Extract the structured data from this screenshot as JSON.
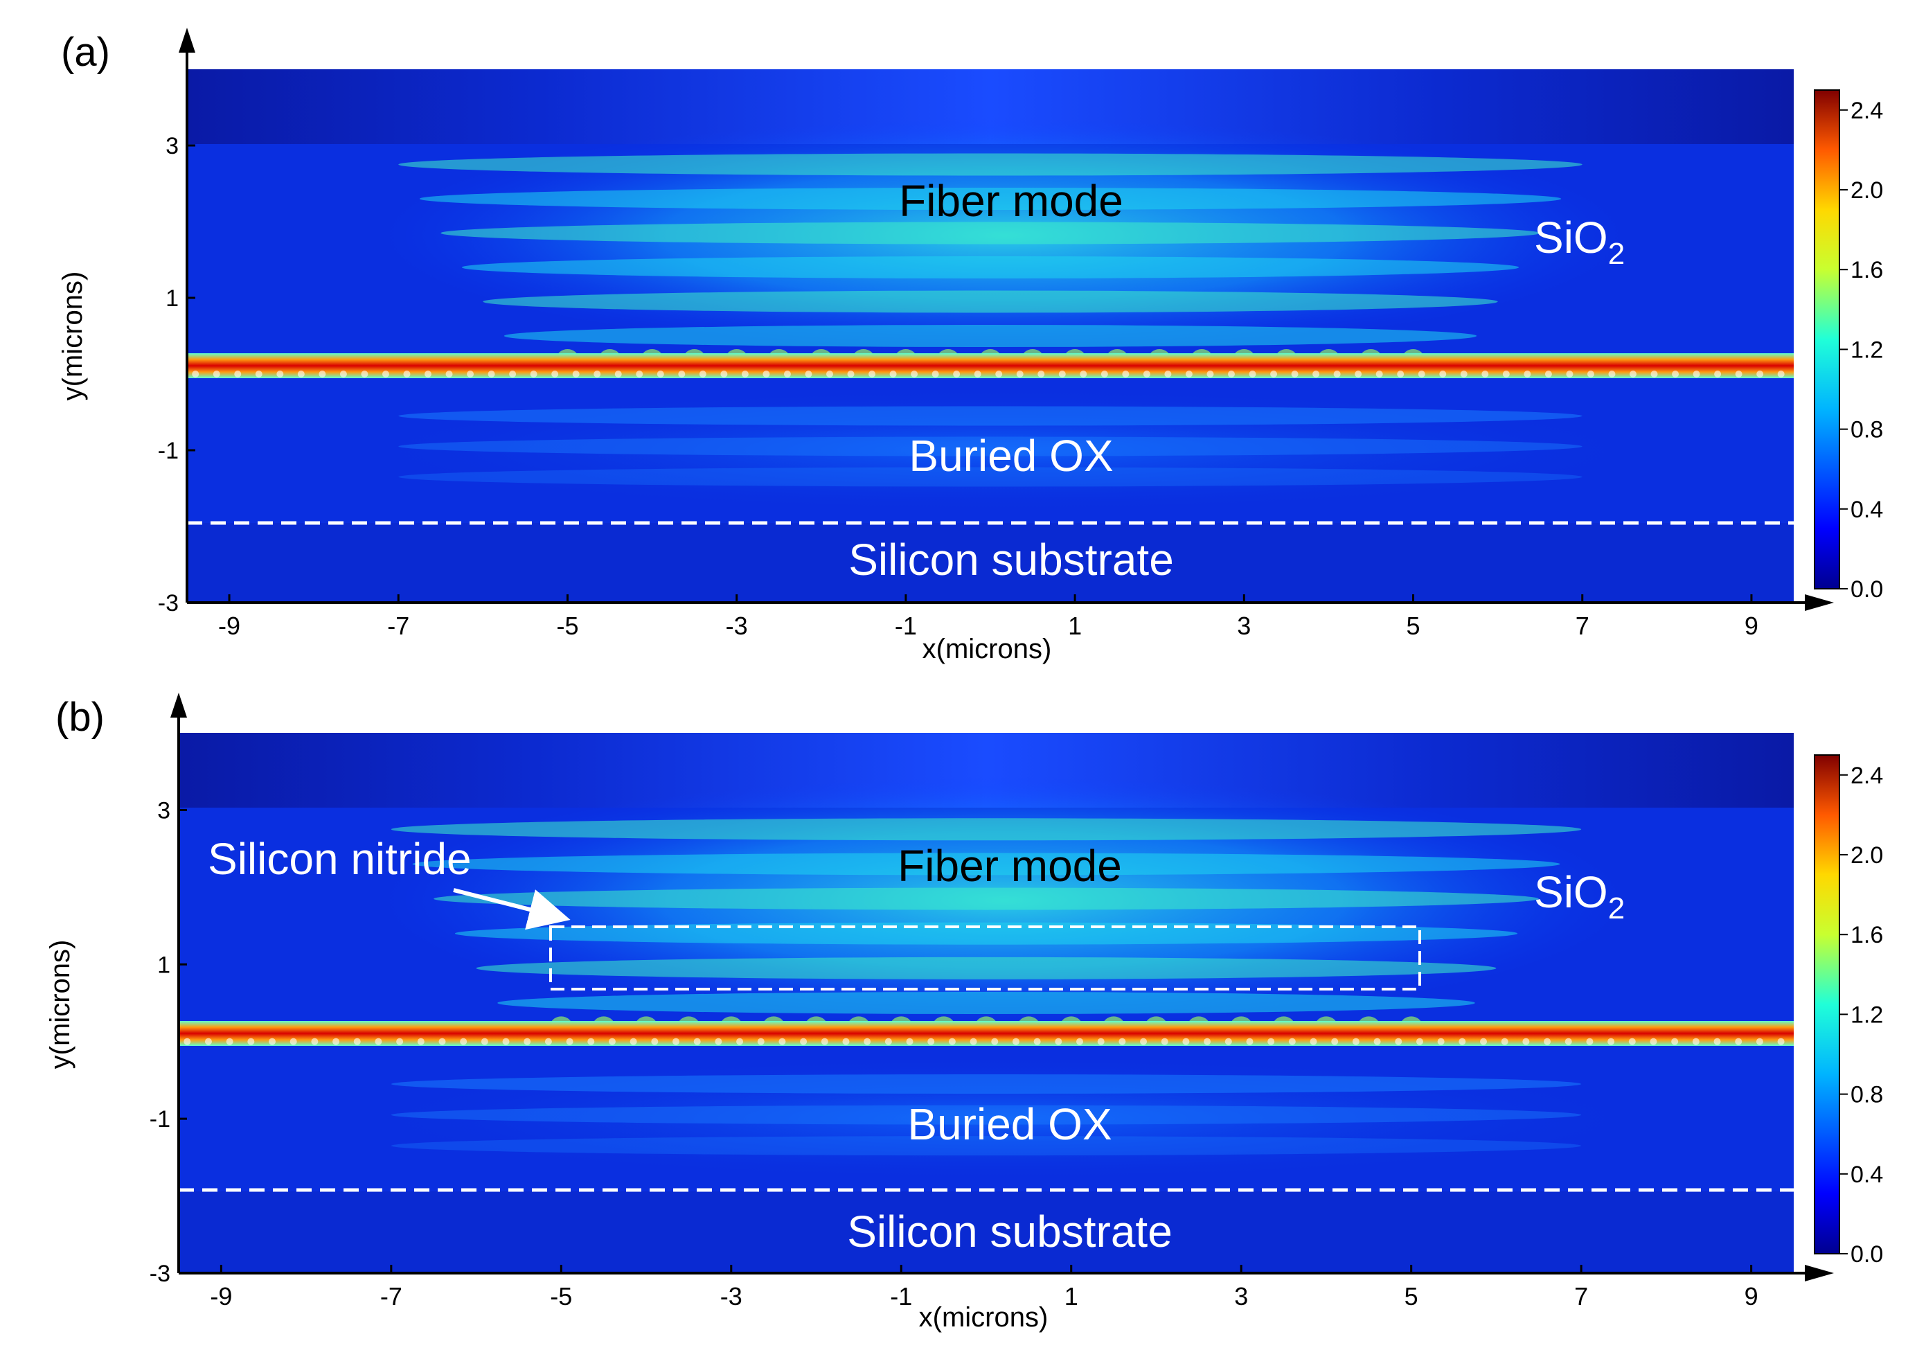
{
  "chart_data": [
    {
      "type": "heatmap",
      "panel_label": "(a)",
      "xlabel": "x(microns)",
      "ylabel": "y(microns)",
      "xlim": [
        -9.5,
        9.5
      ],
      "ylim": [
        -3,
        4
      ],
      "x_ticks": [
        -9,
        -7,
        -5,
        -3,
        -1,
        1,
        3,
        5,
        7,
        9
      ],
      "y_ticks": [
        3,
        1,
        -1,
        -3
      ],
      "colorbar": {
        "min": 0.0,
        "max": 2.5,
        "ticks": [
          "2.4",
          "2.0",
          "1.6",
          "1.2",
          "0.8",
          "0.4",
          "0.0"
        ]
      },
      "annotations": {
        "fiber_mode": "Fiber mode",
        "sio2_main": "SiO",
        "sio2_sub": "2",
        "buried_ox": "Buried OX",
        "silicon_substrate": "Silicon substrate"
      },
      "substrate_boundary_y": -1.9,
      "waveguide_y": 0.0,
      "grating_x_range": [
        -5,
        5
      ],
      "fiber_input_top_y": 3.0
    },
    {
      "type": "heatmap",
      "panel_label": "(b)",
      "xlabel": "x(microns)",
      "ylabel": "y(microns)",
      "xlim": [
        -9.5,
        9.5
      ],
      "ylim": [
        -3,
        4
      ],
      "x_ticks": [
        -9,
        -7,
        -5,
        -3,
        -1,
        1,
        3,
        5,
        7,
        9
      ],
      "y_ticks": [
        3,
        1,
        -1,
        -3
      ],
      "colorbar": {
        "min": 0.0,
        "max": 2.5,
        "ticks": [
          "2.4",
          "2.0",
          "1.6",
          "1.2",
          "0.8",
          "0.4",
          "0.0"
        ]
      },
      "annotations": {
        "fiber_mode": "Fiber mode",
        "sio2_main": "SiO",
        "sio2_sub": "2",
        "buried_ox": "Buried OX",
        "silicon_substrate": "Silicon substrate",
        "silicon_nitride": "Silicon nitride"
      },
      "substrate_boundary_y": -1.9,
      "waveguide_y": 0.0,
      "grating_x_range": [
        -5,
        5
      ],
      "fiber_input_top_y": 3.0,
      "nitride_box": {
        "x": [
          -5.1,
          5.1
        ],
        "y": [
          0.6,
          1.4
        ]
      }
    }
  ],
  "colors": {
    "background": "#ffffff",
    "axis": "#000000",
    "annotation_light": "#ffffff",
    "annotation_dark": "#000000"
  }
}
